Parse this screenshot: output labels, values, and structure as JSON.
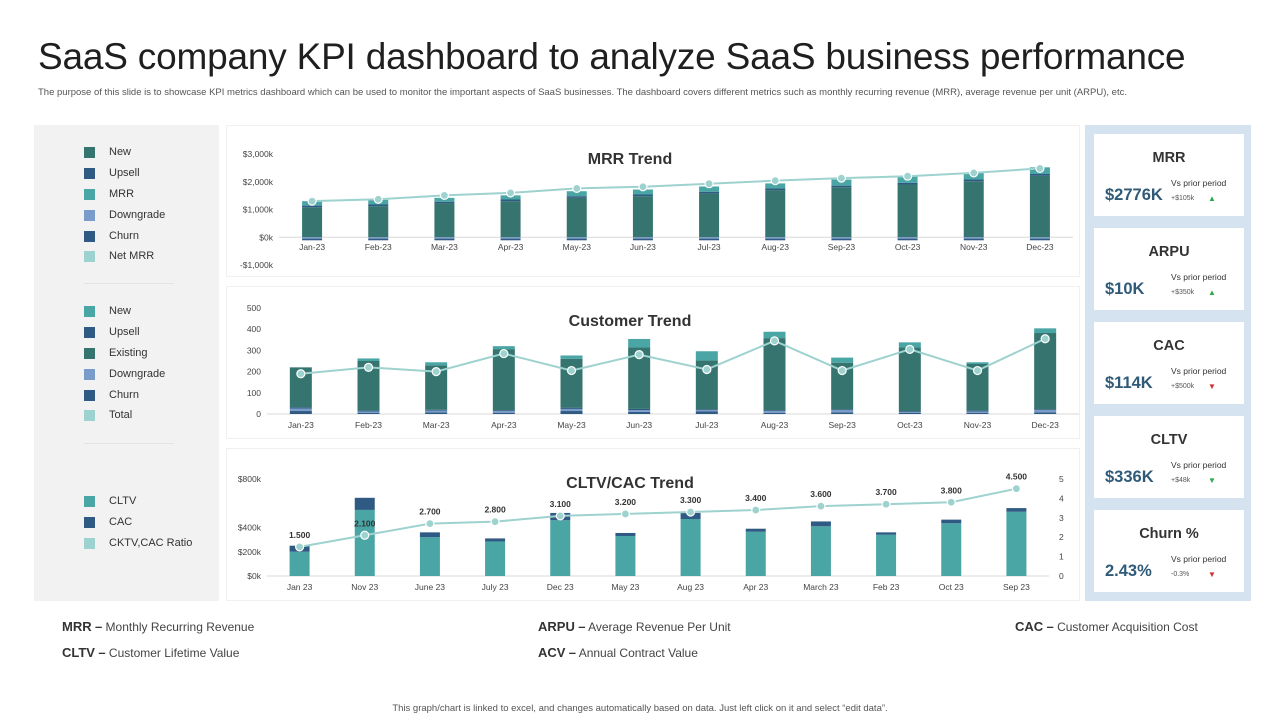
{
  "title": "SaaS company KPI dashboard to analyze SaaS business performance",
  "subtitle": "The purpose of this slide is to showcase KPI metrics dashboard which can be used to monitor the important aspects of SaaS businesses. The dashboard covers different metrics such as monthly recurring revenue (MRR), average revenue per unit (ARPU), etc.",
  "legend": {
    "mrr": [
      {
        "label": "New",
        "color": "#36756f"
      },
      {
        "label": "Upsell",
        "color": "#2f5a83"
      },
      {
        "label": "MRR",
        "color": "#4aa5a5"
      },
      {
        "label": "Downgrade",
        "color": "#7a9ccb"
      },
      {
        "label": "Churn",
        "color": "#2f5a83"
      },
      {
        "label": "Net MRR",
        "color": "#9ed2cf"
      }
    ],
    "customer": [
      {
        "label": "New",
        "color": "#4aa5a5"
      },
      {
        "label": "Upsell",
        "color": "#2f5a83"
      },
      {
        "label": "Existing",
        "color": "#36756f"
      },
      {
        "label": "Downgrade",
        "color": "#7a9ccb"
      },
      {
        "label": "Churn",
        "color": "#2f5a83"
      },
      {
        "label": "Total",
        "color": "#9ed2cf"
      }
    ],
    "cltv": [
      {
        "label": "CLTV",
        "color": "#4aa5a5"
      },
      {
        "label": "CAC",
        "color": "#2f5a83"
      },
      {
        "label": "CKTV,CAC Ratio",
        "color": "#9ed2cf"
      }
    ]
  },
  "kpis": [
    {
      "title": "MRR",
      "value": "$2776K",
      "vs": "Vs prior period",
      "delta": "+$105k",
      "direction": "up"
    },
    {
      "title": "ARPU",
      "value": "$10K",
      "vs": "Vs prior period",
      "delta": "+$350k",
      "direction": "up"
    },
    {
      "title": "CAC",
      "value": "$114K",
      "vs": "Vs prior period",
      "delta": "+$500k",
      "direction": "down"
    },
    {
      "title": "CLTV",
      "value": "$336K",
      "vs": "Vs prior period",
      "delta": "+$48k",
      "direction": "down"
    },
    {
      "title": "Churn %",
      "value": "2.43%",
      "vs": "Vs prior period",
      "delta": "-0.3%",
      "direction": "down"
    }
  ],
  "abbreviations": [
    {
      "abbr": "MRR",
      "sep": "–",
      "text": "Monthly Recurring Revenue"
    },
    {
      "abbr": "ARPU",
      "sep": "–",
      "text": "Average Revenue Per Unit"
    },
    {
      "abbr": "CAC",
      "sep": "–",
      "text": "Customer Acquisition Cost"
    },
    {
      "abbr": "CLTV",
      "sep": "–",
      "text": "Customer Lifetime Value"
    },
    {
      "abbr": "ACV",
      "sep": "–",
      "text": "Annual Contract Value"
    }
  ],
  "footnote": "This graph/chart is linked to excel, and changes automatically based on data. Just left click on it and select “edit data”.",
  "chart_data": [
    {
      "type": "bar",
      "title": "MRR Trend",
      "categories": [
        "Jan-23",
        "Feb-23",
        "Mar-23",
        "Apr-23",
        "May-23",
        "Jun-23",
        "Jul-23",
        "Aug-23",
        "Sep-23",
        "Oct-23",
        "Nov-23",
        "Dec-23"
      ],
      "ylim": [
        -1000,
        3000
      ],
      "yticks": [
        3000,
        2000,
        1000,
        0,
        -1000
      ],
      "ytick_labels": [
        "$3,000k",
        "$2,000k",
        "$1,000k",
        "$0k",
        "-$1,000k"
      ],
      "series": [
        {
          "name": "New",
          "kind": "bar",
          "color": "#36756f",
          "values": [
            1080,
            1120,
            1220,
            1300,
            1420,
            1480,
            1580,
            1700,
            1800,
            1900,
            2020,
            2220
          ]
        },
        {
          "name": "Upsell",
          "kind": "bar",
          "color": "#2f5a83",
          "values": [
            60,
            60,
            60,
            60,
            60,
            60,
            60,
            60,
            60,
            60,
            60,
            60
          ]
        },
        {
          "name": "MRR",
          "kind": "bar",
          "color": "#4aa5a5",
          "values": [
            160,
            170,
            140,
            150,
            180,
            180,
            190,
            180,
            220,
            240,
            240,
            240
          ]
        },
        {
          "name": "Downgrade",
          "kind": "bar",
          "color": "#7a9ccb",
          "values": [
            -50,
            -50,
            -50,
            -50,
            -50,
            -50,
            -50,
            -50,
            -50,
            -50,
            -50,
            -50
          ]
        },
        {
          "name": "Churn",
          "kind": "bar",
          "color": "#2f5a83",
          "values": [
            -60,
            -60,
            -60,
            -60,
            -60,
            -60,
            -60,
            -60,
            -60,
            -60,
            -60,
            -60
          ]
        },
        {
          "name": "Net MRR",
          "kind": "line",
          "color": "#9ed2cf",
          "values": [
            1300,
            1370,
            1510,
            1600,
            1760,
            1820,
            1930,
            2040,
            2130,
            2200,
            2320,
            2480
          ]
        }
      ]
    },
    {
      "type": "bar",
      "title": "Customer Trend",
      "categories": [
        "Jan-23",
        "Feb-23",
        "Mar-23",
        "Apr-23",
        "May-23",
        "Jun-23",
        "Jul-23",
        "Aug-23",
        "Sep-23",
        "Oct-23",
        "Nov-23",
        "Dec-23"
      ],
      "ylim": [
        0,
        500
      ],
      "yticks": [
        500,
        400,
        300,
        200,
        100,
        0
      ],
      "ytick_labels": [
        "500",
        "400",
        "300",
        "200",
        "100",
        "0"
      ],
      "series": [
        {
          "name": "Churn",
          "kind": "bar",
          "color": "#2f5a83",
          "values": [
            14,
            6,
            8,
            6,
            14,
            10,
            12,
            6,
            8,
            6,
            6,
            8
          ]
        },
        {
          "name": "Downgrade",
          "kind": "bar",
          "color": "#7a9ccb",
          "values": [
            12,
            6,
            8,
            8,
            10,
            8,
            6,
            8,
            10,
            4,
            6,
            10
          ]
        },
        {
          "name": "Upsell",
          "kind": "bar",
          "color": "#2f5a83",
          "values": [
            6,
            4,
            4,
            4,
            6,
            6,
            4,
            4,
            4,
            4,
            4,
            4
          ]
        },
        {
          "name": "Existing",
          "kind": "bar",
          "color": "#36756f",
          "values": [
            188,
            234,
            210,
            288,
            230,
            290,
            230,
            340,
            220,
            300,
            220,
            360
          ]
        },
        {
          "name": "New",
          "kind": "bar",
          "color": "#4aa5a5",
          "values": [
            0,
            12,
            14,
            14,
            16,
            40,
            44,
            30,
            24,
            24,
            8,
            22
          ]
        },
        {
          "name": "Total",
          "kind": "line",
          "color": "#9ed2cf",
          "values": [
            190,
            220,
            200,
            285,
            205,
            280,
            210,
            345,
            205,
            305,
            205,
            355
          ]
        }
      ]
    },
    {
      "type": "bar",
      "title": "CLTV/CAC Trend",
      "categories": [
        "Jan 23",
        "Nov 23",
        "June 23",
        "July 23",
        "Dec 23",
        "May 23",
        "Aug 23",
        "Apr 23",
        "March 23",
        "Feb 23",
        "Oct 23",
        "Sep 23"
      ],
      "ylim": [
        0,
        800
      ],
      "yticks": [
        800,
        400,
        200,
        0
      ],
      "ytick_labels": [
        "$800k",
        "$400k",
        "$200k",
        "$0k"
      ],
      "y2lim": [
        0,
        5
      ],
      "y2ticks": [
        0,
        1,
        2,
        3,
        4,
        5
      ],
      "series": [
        {
          "name": "CLTV",
          "kind": "bar",
          "color": "#4aa5a5",
          "values": [
            200,
            545,
            320,
            285,
            460,
            330,
            470,
            365,
            410,
            340,
            435,
            530
          ]
        },
        {
          "name": "CAC",
          "kind": "bar",
          "color": "#2f5a83",
          "values": [
            50,
            100,
            40,
            25,
            60,
            25,
            50,
            25,
            40,
            20,
            30,
            30
          ]
        },
        {
          "name": "CKTV,CAC Ratio",
          "kind": "line",
          "axis": "right",
          "color": "#9ed2cf",
          "values": [
            1.5,
            2.1,
            2.7,
            2.8,
            3.1,
            3.2,
            3.3,
            3.4,
            3.6,
            3.7,
            3.8,
            4.5
          ],
          "labels": [
            "1.500",
            "2.100",
            "2.700",
            "2.800",
            "3.100",
            "3.200",
            "3.300",
            "3.400",
            "3.600",
            "3.700",
            "3.800",
            "4.500"
          ]
        }
      ]
    }
  ]
}
